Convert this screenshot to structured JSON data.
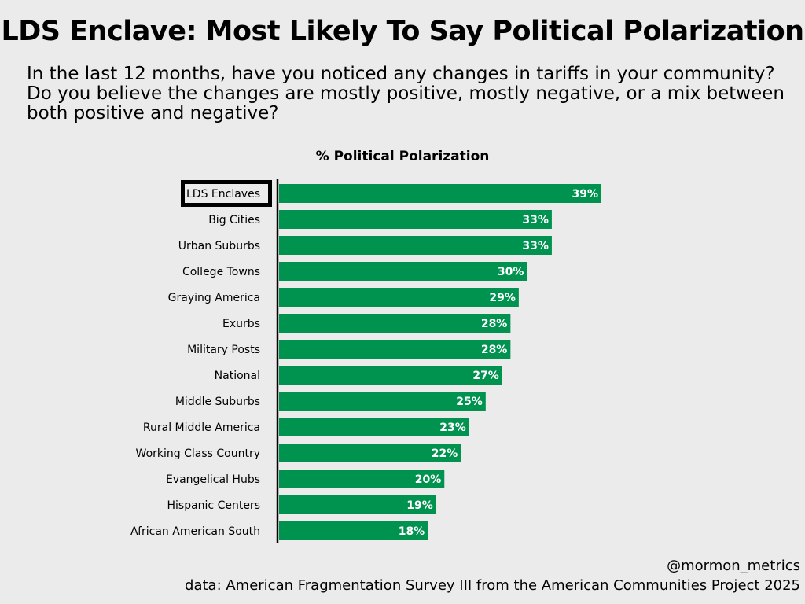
{
  "title": "LDS Enclave: Most Likely To Say Political Polarization",
  "subtitle": "In the last 12 months, have you noticed any changes in tariffs in your community? Do you believe the changes are mostly positive, mostly negative, or a mix between both positive and negative?",
  "credit": "@mormon_metrics",
  "source": "data: American Fragmentation Survey III from the American Communities Project 2025",
  "colors": {
    "bar": "#00924f",
    "background": "#ebebeb"
  },
  "chart_data": {
    "type": "bar",
    "orientation": "horizontal",
    "title": "% Political Polarization",
    "highlighted": "LDS Enclaves",
    "categories": [
      "LDS Enclaves",
      "Big Cities",
      "Urban Suburbs",
      "College Towns",
      "Graying America",
      "Exurbs",
      "Military Posts",
      "National",
      "Middle Suburbs",
      "Rural Middle America",
      "Working Class Country",
      "Evangelical Hubs",
      "Hispanic Centers",
      "African American South"
    ],
    "values": [
      39,
      33,
      33,
      30,
      29,
      28,
      28,
      27,
      25,
      23,
      22,
      20,
      19,
      18
    ],
    "labels": [
      "39%",
      "33%",
      "33%",
      "30%",
      "29%",
      "28%",
      "28%",
      "27%",
      "25%",
      "23%",
      "22%",
      "20%",
      "19%",
      "18%"
    ],
    "xlim": [
      0,
      39
    ]
  }
}
